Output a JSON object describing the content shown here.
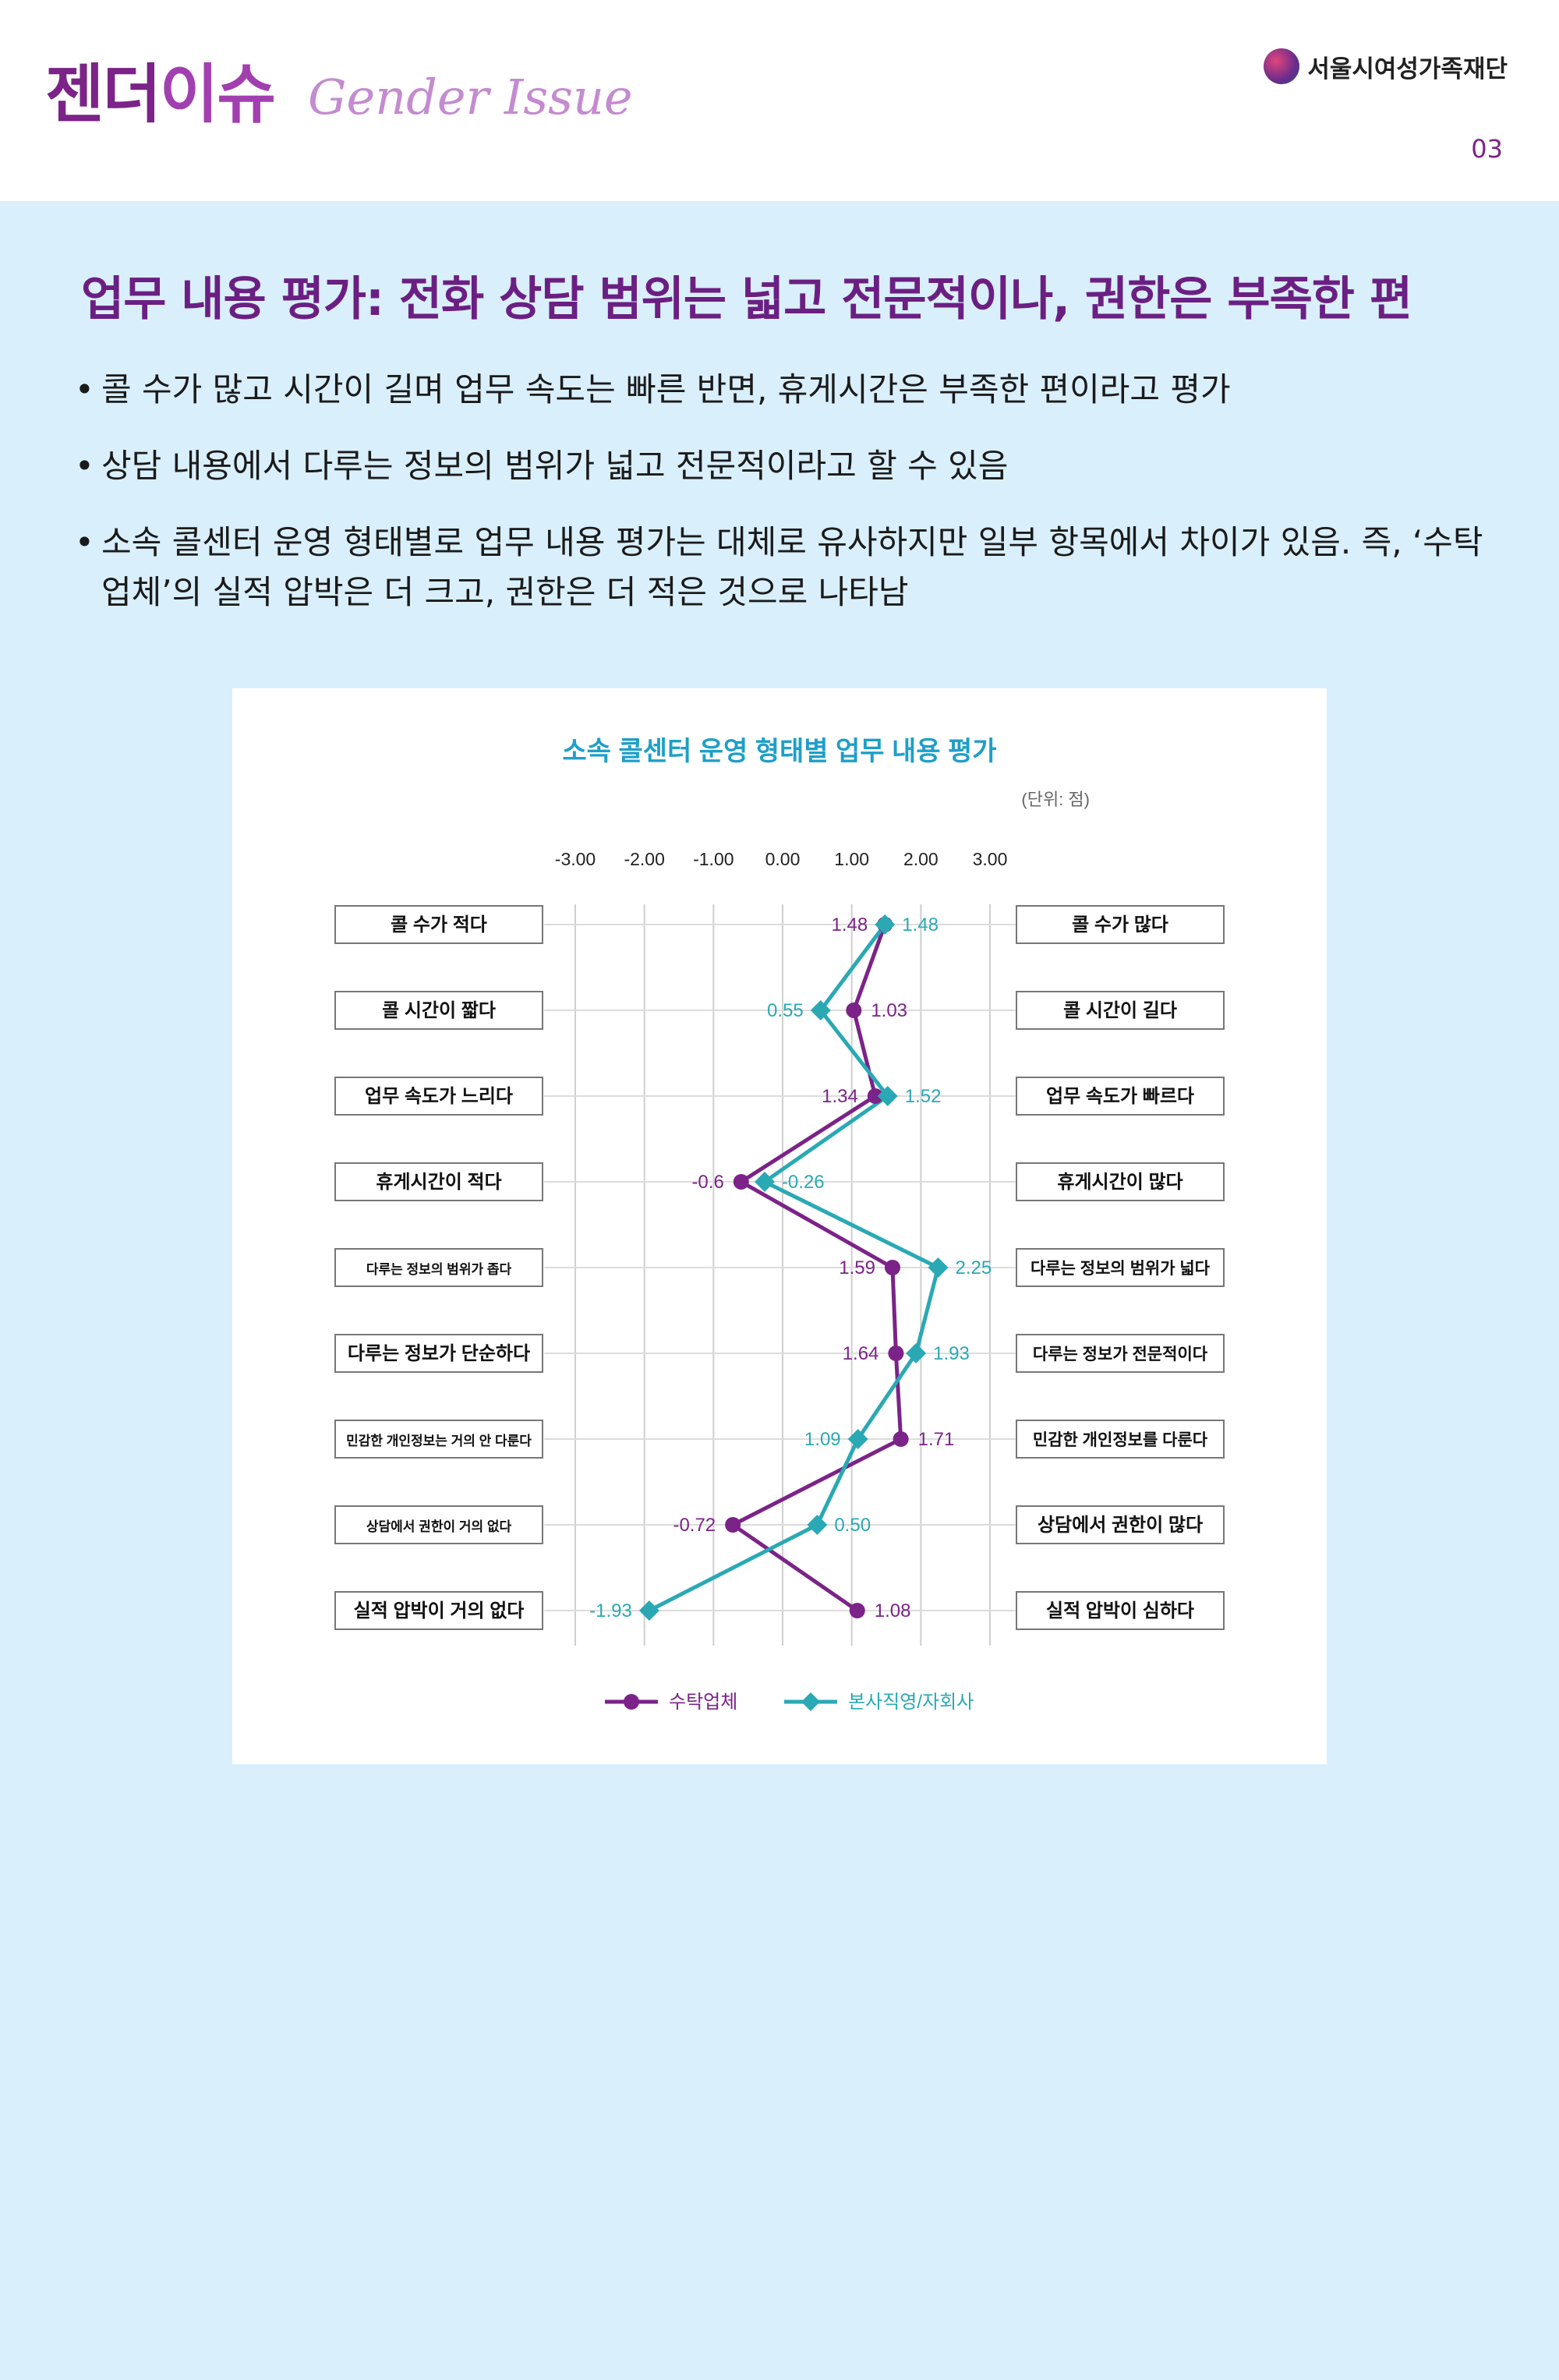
{
  "header": {
    "logo_ko_a": "젠더",
    "logo_ko_b": "이슈",
    "logo_en": "Gender Issue",
    "org": "서울시여성가족재단",
    "page": "03"
  },
  "title": "업무 내용 평가: 전화 상담 범위는 넓고 전문적이나, 권한은 부족한 편",
  "bullets": [
    "콜 수가 많고 시간이 길며 업무 속도는 빠른 반면, 휴게시간은 부족한 편이라고 평가",
    "상담 내용에서 다루는 정보의 범위가 넓고 전문적이라고 할 수 있음",
    "소속 콜센터 운영 형태별로 업무 내용 평가는 대체로 유사하지만 일부 항목에서 차이가 있음. 즉, ‘수탁업체’의 실적 압박은 더 크고, 권한은 더 적은 것으로 나타남"
  ],
  "chart_data": {
    "type": "line",
    "title": "소속 콜센터 운영 형태별 업무 내용 평가",
    "unit": "(단위: 점)",
    "xlim": [
      -3,
      3
    ],
    "ticks": [
      "-3.00",
      "-2.00",
      "-1.00",
      "0.00",
      "1.00",
      "2.00",
      "3.00"
    ],
    "left_labels": [
      "콜 수가 적다",
      "콜 시간이 짧다",
      "업무 속도가 느리다",
      "휴게시간이 적다",
      "다루는 정보의 범위가 좁다",
      "다루는 정보가 단순하다",
      "민감한 개인정보는 거의 안 다룬다",
      "상담에서 권한이 거의 없다",
      "실적 압박이 거의 없다"
    ],
    "right_labels": [
      "콜 수가 많다",
      "콜 시간이 길다",
      "업무 속도가 빠르다",
      "휴게시간이 많다",
      "다루는 정보의 범위가 넓다",
      "다루는 정보가 전문적이다",
      "민감한 개인정보를 다룬다",
      "상담에서 권한이 많다",
      "실적 압박이 심하다"
    ],
    "series": [
      {
        "name": "수탁업체",
        "color": "#7b2388",
        "marker": "circle",
        "values": [
          1.48,
          1.03,
          1.34,
          -0.6,
          1.59,
          1.64,
          1.71,
          -0.72,
          1.08
        ],
        "labels": [
          "1.48",
          "1.03",
          "1.34",
          "-0.6",
          "1.59",
          "1.64",
          "1.71",
          "-0.72",
          "1.08"
        ]
      },
      {
        "name": "본사직영/자회사",
        "color": "#2aa9b4",
        "marker": "diamond",
        "values": [
          1.48,
          0.55,
          1.52,
          -0.26,
          2.25,
          1.93,
          1.09,
          0.5,
          -1.93
        ],
        "labels": [
          "1.48",
          "0.55",
          "1.52",
          "-0.26",
          "2.25",
          "1.93",
          "1.09",
          "0.50",
          "-1.93"
        ]
      }
    ]
  }
}
